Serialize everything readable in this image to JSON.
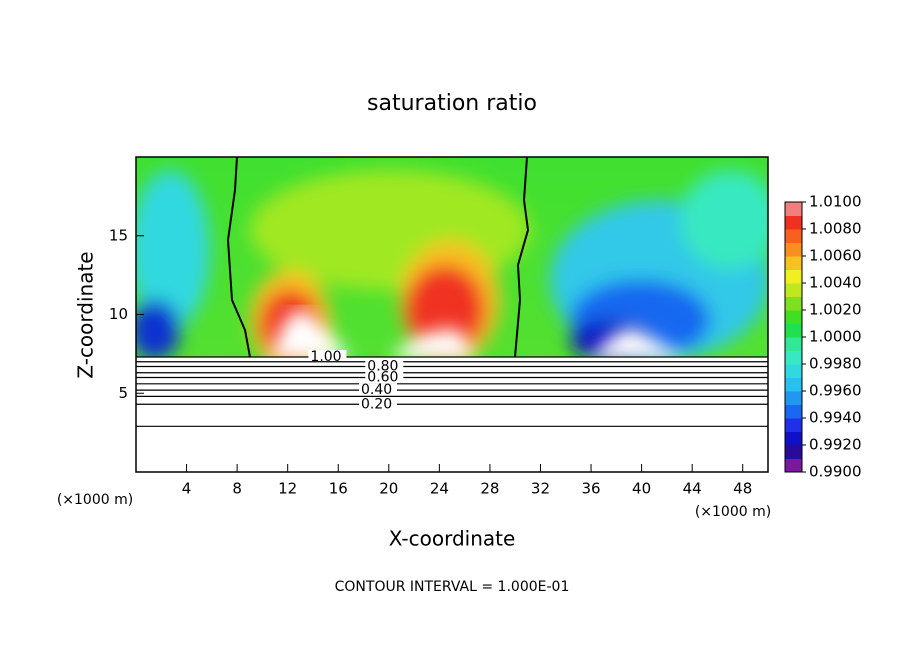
{
  "chart_data": {
    "type": "contour",
    "title": "saturation ratio",
    "xlabel": "X-coordinate",
    "ylabel": "Z-coordinate",
    "x_unit": "(×1000 m)",
    "y_unit": "(×1000 m)",
    "footer": "CONTOUR INTERVAL = 1.000E-01",
    "xlim": [
      0,
      50
    ],
    "ylim": [
      0,
      20
    ],
    "xticks": [
      4,
      8,
      12,
      16,
      20,
      24,
      28,
      32,
      36,
      40,
      44,
      48
    ],
    "yticks": [
      5,
      10,
      15
    ],
    "contours": [
      {
        "level": 1.0,
        "label": "1.00",
        "y": 7.3,
        "label_x": 13.8
      },
      {
        "level": 0.9,
        "y": 7.0
      },
      {
        "level": 0.8,
        "label": "0.80",
        "y": 6.7,
        "label_x": 18.3
      },
      {
        "level": 0.7,
        "y": 6.3
      },
      {
        "level": 0.6,
        "label": "0.60",
        "y": 6.0,
        "label_x": 18.3
      },
      {
        "level": 0.5,
        "y": 5.6
      },
      {
        "level": 0.4,
        "label": "0.40",
        "y": 5.2,
        "label_x": 17.8
      },
      {
        "level": 0.3,
        "y": 4.8
      },
      {
        "level": 0.2,
        "label": "0.20",
        "y": 4.3,
        "label_x": 17.8
      },
      {
        "level": 0.1,
        "y": 2.9
      }
    ],
    "colorbar": {
      "lim": [
        0.99,
        1.01
      ],
      "ticks": [
        {
          "value": 0.99,
          "label": "0.9900"
        },
        {
          "value": 0.992,
          "label": "0.9920"
        },
        {
          "value": 0.994,
          "label": "0.9940"
        },
        {
          "value": 0.996,
          "label": "0.9960"
        },
        {
          "value": 0.998,
          "label": "0.9980"
        },
        {
          "value": 1.0,
          "label": "1.0000"
        },
        {
          "value": 1.002,
          "label": "1.0020"
        },
        {
          "value": 1.004,
          "label": "1.0040"
        },
        {
          "value": 1.006,
          "label": "1.0060"
        },
        {
          "value": 1.008,
          "label": "1.0080"
        },
        {
          "value": 1.01,
          "label": "1.0100"
        }
      ],
      "colors": [
        "#7a1a9a",
        "#2a0a9a",
        "#1010c8",
        "#2030e8",
        "#1868f0",
        "#2098f0",
        "#28c0f0",
        "#30d8e0",
        "#38e8c0",
        "#30e898",
        "#20e050",
        "#40e020",
        "#80e020",
        "#c0e820",
        "#f0f020",
        "#f8c020",
        "#f89020",
        "#f86020",
        "#f03020",
        "#f08080"
      ]
    }
  }
}
